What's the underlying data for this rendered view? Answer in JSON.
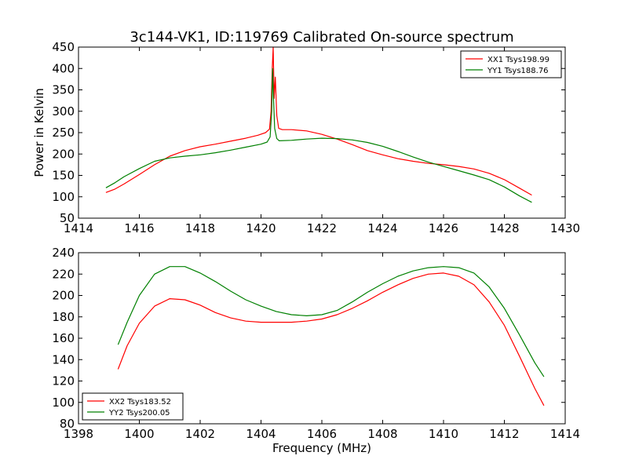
{
  "title": "3c144-VK1, ID:119769 Calibrated On-source spectrum",
  "chart_data": [
    {
      "type": "line",
      "name": "top-panel",
      "xlim": [
        1414,
        1430
      ],
      "ylim": [
        50,
        450
      ],
      "xticks": [
        1414,
        1416,
        1418,
        1420,
        1422,
        1424,
        1426,
        1428,
        1430
      ],
      "yticks": [
        50,
        100,
        150,
        200,
        250,
        300,
        350,
        400,
        450
      ],
      "xlabel": "",
      "ylabel": "Power in Kelvin",
      "legend_position": "top-right",
      "grid": false,
      "series": [
        {
          "name": "XX1 Tsys198.99",
          "color": "#ff0000",
          "points": [
            [
              1414.9,
              110
            ],
            [
              1415.2,
              118
            ],
            [
              1415.5,
              130
            ],
            [
              1416.0,
              152
            ],
            [
              1416.5,
              175
            ],
            [
              1417.0,
              195
            ],
            [
              1417.5,
              208
            ],
            [
              1418.0,
              217
            ],
            [
              1418.5,
              223
            ],
            [
              1419.0,
              230
            ],
            [
              1419.5,
              237
            ],
            [
              1419.9,
              244
            ],
            [
              1420.15,
              250
            ],
            [
              1420.28,
              258
            ],
            [
              1420.33,
              300
            ],
            [
              1420.37,
              400
            ],
            [
              1420.4,
              450
            ],
            [
              1420.43,
              330
            ],
            [
              1420.47,
              380
            ],
            [
              1420.52,
              290
            ],
            [
              1420.58,
              260
            ],
            [
              1420.7,
              257
            ],
            [
              1421.0,
              257
            ],
            [
              1421.5,
              254
            ],
            [
              1422.0,
              246
            ],
            [
              1422.5,
              235
            ],
            [
              1423.0,
              222
            ],
            [
              1423.5,
              208
            ],
            [
              1424.0,
              198
            ],
            [
              1424.5,
              189
            ],
            [
              1425.0,
              183
            ],
            [
              1425.5,
              178
            ],
            [
              1426.0,
              175
            ],
            [
              1426.5,
              171
            ],
            [
              1427.0,
              165
            ],
            [
              1427.5,
              155
            ],
            [
              1428.0,
              140
            ],
            [
              1428.5,
              120
            ],
            [
              1428.9,
              104
            ]
          ]
        },
        {
          "name": "YY1 Tsys188.76",
          "color": "#008000",
          "points": [
            [
              1414.9,
              121
            ],
            [
              1415.2,
              133
            ],
            [
              1415.5,
              147
            ],
            [
              1416.0,
              166
            ],
            [
              1416.5,
              183
            ],
            [
              1417.0,
              191
            ],
            [
              1417.5,
              195
            ],
            [
              1418.0,
              198
            ],
            [
              1418.5,
              203
            ],
            [
              1419.0,
              209
            ],
            [
              1419.5,
              216
            ],
            [
              1420.0,
              223
            ],
            [
              1420.2,
              228
            ],
            [
              1420.3,
              240
            ],
            [
              1420.35,
              300
            ],
            [
              1420.38,
              400
            ],
            [
              1420.41,
              330
            ],
            [
              1420.45,
              260
            ],
            [
              1420.52,
              236
            ],
            [
              1420.6,
              231
            ],
            [
              1421.0,
              232
            ],
            [
              1421.5,
              235
            ],
            [
              1422.0,
              237
            ],
            [
              1422.5,
              236
            ],
            [
              1423.0,
              233
            ],
            [
              1423.5,
              227
            ],
            [
              1424.0,
              218
            ],
            [
              1424.5,
              206
            ],
            [
              1425.0,
              193
            ],
            [
              1425.5,
              181
            ],
            [
              1426.0,
              171
            ],
            [
              1426.5,
              161
            ],
            [
              1427.0,
              151
            ],
            [
              1427.5,
              140
            ],
            [
              1428.0,
              123
            ],
            [
              1428.5,
              102
            ],
            [
              1428.9,
              87
            ]
          ]
        }
      ]
    },
    {
      "type": "line",
      "name": "bottom-panel",
      "xlim": [
        1398,
        1414
      ],
      "ylim": [
        80,
        240
      ],
      "xticks": [
        1398,
        1400,
        1402,
        1404,
        1406,
        1408,
        1410,
        1412,
        1414
      ],
      "yticks": [
        80,
        100,
        120,
        140,
        160,
        180,
        200,
        220,
        240
      ],
      "xlabel": "Frequency (MHz)",
      "ylabel": "",
      "legend_position": "bottom-left",
      "grid": false,
      "series": [
        {
          "name": "XX2 Tsys183.52",
          "color": "#ff0000",
          "points": [
            [
              1399.3,
              131
            ],
            [
              1399.6,
              153
            ],
            [
              1400.0,
              174
            ],
            [
              1400.5,
              190
            ],
            [
              1401.0,
              197
            ],
            [
              1401.5,
              196
            ],
            [
              1402.0,
              191
            ],
            [
              1402.5,
              184
            ],
            [
              1403.0,
              179
            ],
            [
              1403.5,
              176
            ],
            [
              1404.0,
              175
            ],
            [
              1404.5,
              175
            ],
            [
              1405.0,
              175
            ],
            [
              1405.5,
              176
            ],
            [
              1406.0,
              178
            ],
            [
              1406.5,
              182
            ],
            [
              1407.0,
              188
            ],
            [
              1407.5,
              195
            ],
            [
              1408.0,
              203
            ],
            [
              1408.5,
              210
            ],
            [
              1409.0,
              216
            ],
            [
              1409.5,
              220
            ],
            [
              1410.0,
              221
            ],
            [
              1410.5,
              218
            ],
            [
              1411.0,
              210
            ],
            [
              1411.5,
              194
            ],
            [
              1412.0,
              172
            ],
            [
              1412.5,
              143
            ],
            [
              1413.0,
              113
            ],
            [
              1413.3,
              97
            ]
          ]
        },
        {
          "name": "YY2 Tsys200.05",
          "color": "#008000",
          "points": [
            [
              1399.3,
              154
            ],
            [
              1399.6,
              175
            ],
            [
              1400.0,
              200
            ],
            [
              1400.5,
              220
            ],
            [
              1401.0,
              227
            ],
            [
              1401.5,
              227
            ],
            [
              1402.0,
              221
            ],
            [
              1402.5,
              213
            ],
            [
              1403.0,
              204
            ],
            [
              1403.5,
              196
            ],
            [
              1404.0,
              190
            ],
            [
              1404.5,
              185
            ],
            [
              1405.0,
              182
            ],
            [
              1405.5,
              181
            ],
            [
              1406.0,
              182
            ],
            [
              1406.5,
              186
            ],
            [
              1407.0,
              194
            ],
            [
              1407.5,
              203
            ],
            [
              1408.0,
              211
            ],
            [
              1408.5,
              218
            ],
            [
              1409.0,
              223
            ],
            [
              1409.5,
              226
            ],
            [
              1410.0,
              227
            ],
            [
              1410.5,
              226
            ],
            [
              1411.0,
              221
            ],
            [
              1411.5,
              208
            ],
            [
              1412.0,
              188
            ],
            [
              1412.5,
              163
            ],
            [
              1413.0,
              137
            ],
            [
              1413.3,
              124
            ]
          ]
        }
      ]
    }
  ]
}
